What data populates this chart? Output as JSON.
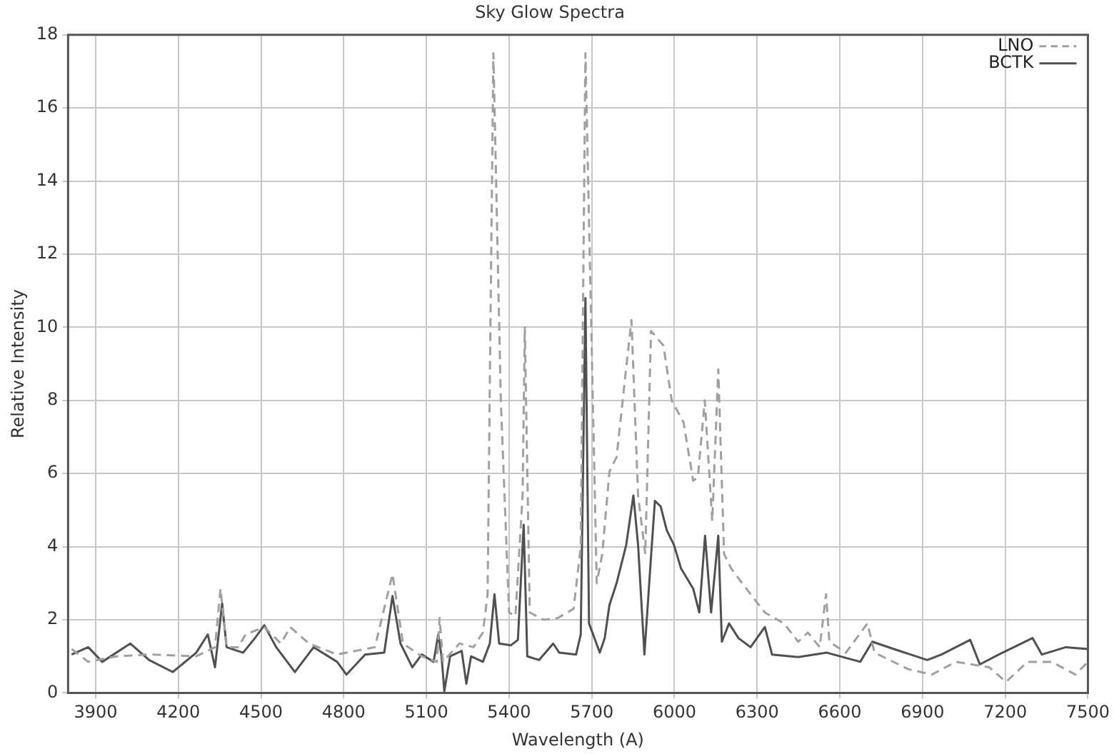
{
  "chart_data": {
    "type": "line",
    "title": "Sky Glow Spectra",
    "xlabel": "Wavelength (A)",
    "ylabel": "Relative Intensity",
    "xlim": [
      3800,
      7500
    ],
    "xticks": [
      3900,
      4200,
      4500,
      4800,
      5100,
      5400,
      5700,
      6000,
      6300,
      6600,
      6900,
      7200,
      7500
    ],
    "ylim": [
      0,
      18
    ],
    "yticks": [
      0,
      2,
      4,
      6,
      8,
      10,
      12,
      14,
      16,
      18
    ],
    "grid": true,
    "legend": "top right",
    "marker": "none",
    "series": [
      {
        "name": "LNO",
        "color": "#a0a0a0",
        "line_style": "dashed",
        "x": [
          3813,
          3873,
          3975,
          4094,
          4265,
          4333,
          4353,
          4375,
          4418,
          4444,
          4512,
          4572,
          4606,
          4674,
          4776,
          4913,
          4977,
          5015,
          5083,
          5138,
          5148,
          5160,
          5220,
          5271,
          5305,
          5322,
          5343,
          5370,
          5400,
          5423,
          5449,
          5457,
          5475,
          5525,
          5577,
          5634,
          5660,
          5677,
          5718,
          5738,
          5764,
          5790,
          5825,
          5844,
          5868,
          5894,
          5915,
          5960,
          5990,
          6033,
          6068,
          6085,
          6110,
          6137,
          6159,
          6180,
          6206,
          6276,
          6328,
          6397,
          6449,
          6484,
          6527,
          6550,
          6562,
          6622,
          6700,
          6726,
          6848,
          6934,
          7021,
          7142,
          7203,
          7281,
          7368,
          7455,
          7500
        ],
        "values": [
          1.2,
          0.85,
          1.0,
          1.05,
          1.0,
          1.25,
          2.85,
          1.25,
          1.25,
          1.6,
          1.8,
          1.35,
          1.8,
          1.35,
          1.05,
          1.25,
          3.25,
          1.35,
          1.0,
          0.85,
          2.05,
          0.85,
          1.35,
          1.25,
          1.65,
          2.7,
          17.5,
          8,
          2.2,
          2.1,
          5.4,
          10.0,
          2.2,
          2.0,
          2.05,
          2.3,
          4,
          17.5,
          3.0,
          3.8,
          6.05,
          6.45,
          8.9,
          10.2,
          5.4,
          3.8,
          9.9,
          9.5,
          8,
          7.4,
          5.8,
          5.9,
          8.0,
          4.7,
          8.85,
          3.8,
          3.4,
          2.7,
          2.2,
          1.9,
          1.4,
          1.65,
          1.25,
          2.7,
          1.4,
          1.1,
          1.9,
          1.1,
          0.65,
          0.5,
          0.85,
          0.7,
          0.3,
          0.85,
          0.85,
          0.5,
          0.85
        ]
      },
      {
        "name": "BCTK",
        "color": "#505050",
        "line_style": "solid",
        "x": [
          3813,
          3873,
          3924,
          4026,
          4094,
          4180,
          4265,
          4307,
          4333,
          4359,
          4375,
          4435,
          4478,
          4512,
          4555,
          4623,
          4691,
          4776,
          4810,
          4878,
          4947,
          4977,
          5006,
          5049,
          5083,
          5126,
          5143,
          5155,
          5165,
          5186,
          5228,
          5245,
          5262,
          5305,
          5330,
          5347,
          5364,
          5406,
          5432,
          5453,
          5466,
          5509,
          5560,
          5582,
          5643,
          5660,
          5677,
          5690,
          5729,
          5747,
          5764,
          5790,
          5825,
          5851,
          5868,
          5891,
          5912,
          5929,
          5950,
          5972,
          5998,
          6024,
          6068,
          6090,
          6111,
          6133,
          6159,
          6172,
          6198,
          6232,
          6276,
          6328,
          6354,
          6449,
          6553,
          6674,
          6718,
          6796,
          6917,
          6969,
          7073,
          7108,
          7177,
          7299,
          7333,
          7420,
          7500
        ],
        "values": [
          1.05,
          1.25,
          0.85,
          1.35,
          0.9,
          0.57,
          1.1,
          1.6,
          0.7,
          2.45,
          1.25,
          1.1,
          1.5,
          1.85,
          1.25,
          0.57,
          1.25,
          0.85,
          0.5,
          1.05,
          1.1,
          2.65,
          1.35,
          0.7,
          1.05,
          0.85,
          1.6,
          1.0,
          0.05,
          1.0,
          1.15,
          0.25,
          1.0,
          0.85,
          1.35,
          2.7,
          1.35,
          1.3,
          1.45,
          4.6,
          1.0,
          0.9,
          1.35,
          1.1,
          1.05,
          1.6,
          10.8,
          1.9,
          1.1,
          1.5,
          2.4,
          3.0,
          4.05,
          5.4,
          4.05,
          1.05,
          3.4,
          5.25,
          5.1,
          4.45,
          4.05,
          3.4,
          2.85,
          2.2,
          4.3,
          2.2,
          4.3,
          1.4,
          1.9,
          1.5,
          1.25,
          1.8,
          1.05,
          0.98,
          1.1,
          0.85,
          1.4,
          1.2,
          0.9,
          1.05,
          1.45,
          0.78,
          1.05,
          1.5,
          1.05,
          1.25,
          1.2
        ]
      }
    ]
  }
}
